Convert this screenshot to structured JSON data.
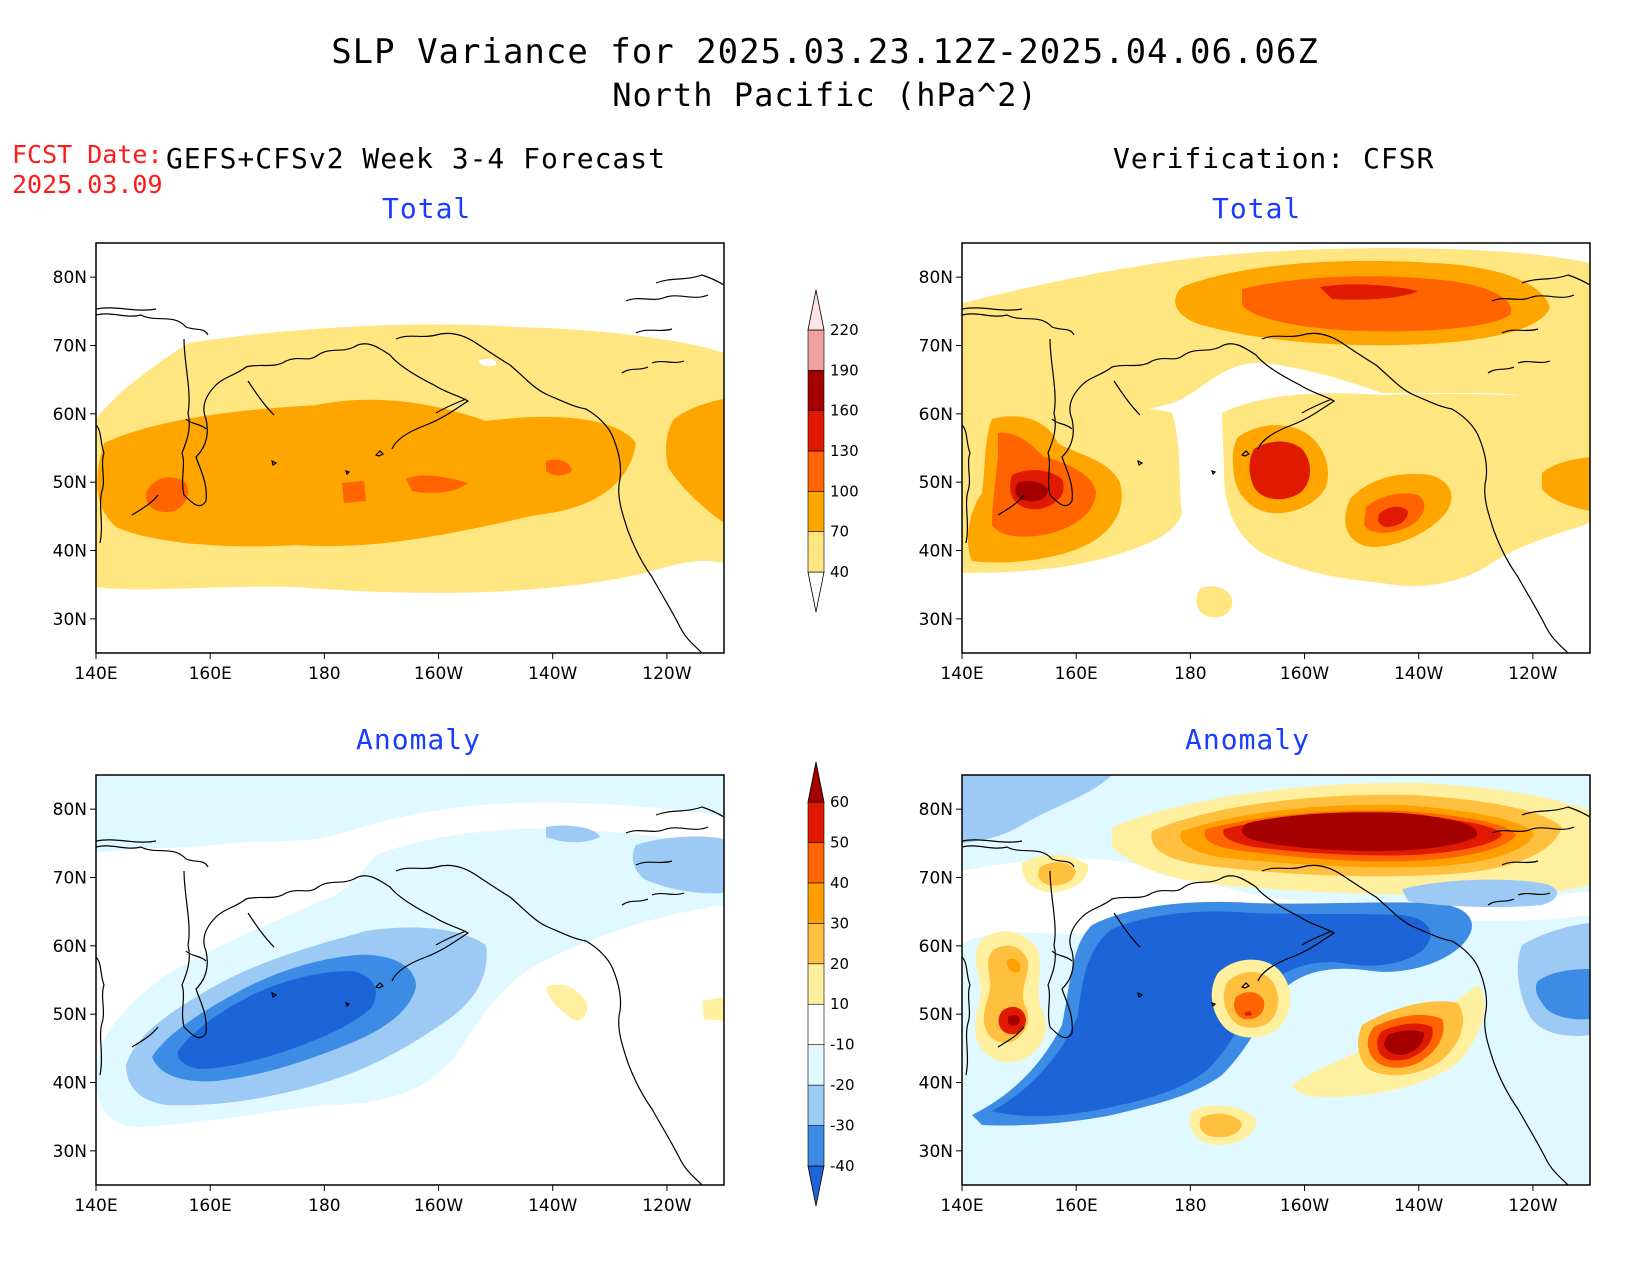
{
  "title": {
    "line1": "SLP Variance for 2025.03.23.12Z-2025.04.06.06Z",
    "line2": "North Pacific (hPa^2)"
  },
  "fcst": {
    "label": "FCST Date:",
    "date": "2025.03.09"
  },
  "left_header": "GEFS+CFSv2 Week 3-4 Forecast",
  "right_header": "Verification: CFSR",
  "panels": {
    "fcst_total": {
      "subtitle": "Total"
    },
    "verif_total": {
      "subtitle": "Total"
    },
    "fcst_anom": {
      "subtitle": "Anomaly"
    },
    "verif_anom": {
      "subtitle": "Anomaly"
    }
  },
  "axes": {
    "lat_labels": [
      "80N",
      "70N",
      "60N",
      "50N",
      "40N",
      "30N"
    ],
    "lat_values": [
      80,
      70,
      60,
      50,
      40,
      30
    ],
    "lon_labels": [
      "140E",
      "160E",
      "180",
      "160W",
      "140W",
      "120W"
    ],
    "lon_values": [
      140,
      160,
      180,
      200,
      220,
      240
    ],
    "lon_range": [
      140,
      250
    ],
    "lat_range": [
      25,
      85
    ]
  },
  "colorbars": {
    "total": {
      "levels": [
        "40",
        "70",
        "100",
        "130",
        "160",
        "190",
        "220"
      ],
      "colors": [
        "#ffe680",
        "#ffa500",
        "#ff6400",
        "#e01a00",
        "#a50000",
        "#f0a0a0",
        "#ffe4e4"
      ]
    },
    "anomaly": {
      "levels": [
        "-40",
        "-30",
        "-20",
        "-10",
        "10",
        "20",
        "30",
        "40",
        "50",
        "60"
      ],
      "colors": [
        "#1c64d8",
        "#3c8ce6",
        "#9ccaf5",
        "#e0f8ff",
        "#ffffff",
        "#fff0a0",
        "#ffc040",
        "#ffa000",
        "#ff6400",
        "#e01a00",
        "#a50000"
      ]
    }
  },
  "palette": {
    "total_40": "#ffe680",
    "total_70": "#ffa500",
    "total_100": "#ff6400",
    "total_130": "#e01a00",
    "total_160": "#a50000",
    "anom_neg10": "#e0f8ff",
    "anom_neg20": "#9ccaf5",
    "anom_neg30": "#3c8ce6",
    "anom_neg40": "#1c64d8",
    "anom_pos10": "#fff0a0",
    "anom_pos20": "#ffc040",
    "anom_pos30": "#ffa000",
    "anom_pos40": "#ff6400",
    "anom_pos50": "#e01a00",
    "anom_pos60": "#a50000",
    "title_blue": "#1a3cff",
    "fcst_red": "#ff1a1a"
  }
}
